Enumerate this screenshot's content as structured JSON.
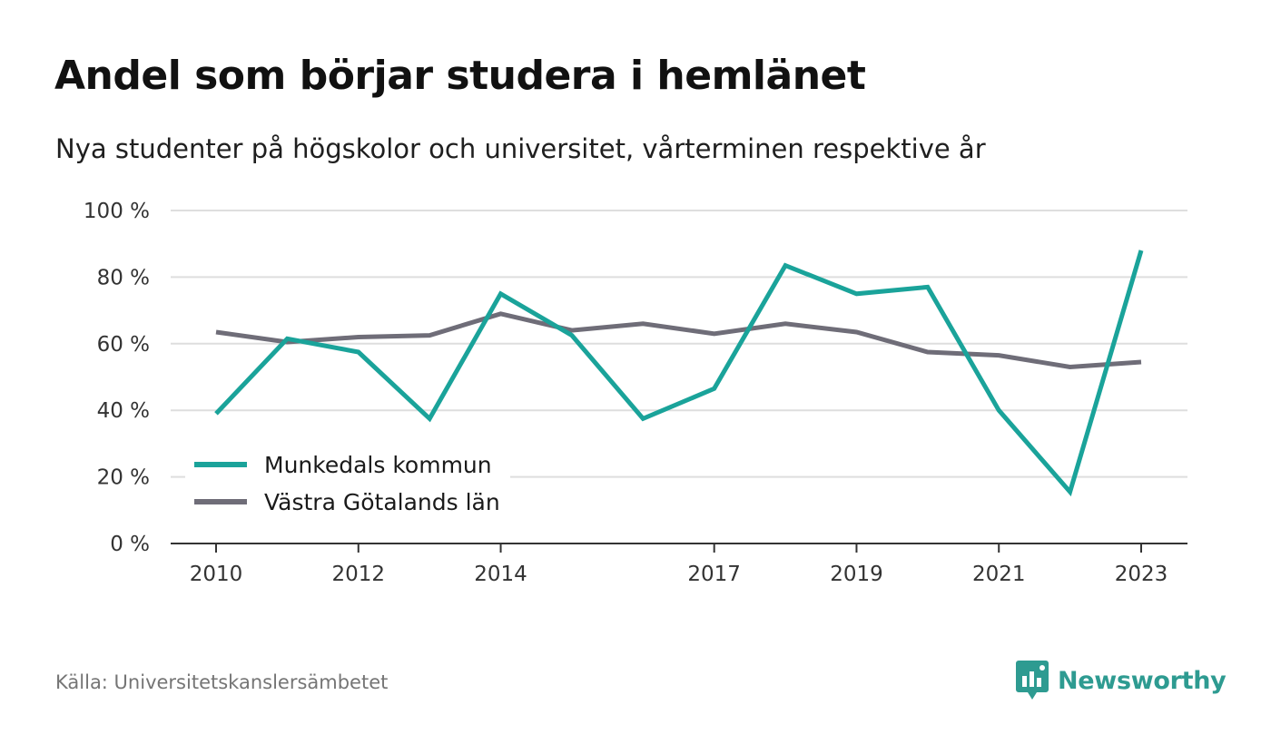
{
  "title": "Andel som börjar studera i hemlänet",
  "subtitle": "Nya studenter på högskolor och universitet, vårterminen respektive år",
  "source": "Källa: Universitetskanslersämbetet",
  "brand": {
    "name": "Newsworthy",
    "icon": "newsworthy-logo-icon",
    "color": "#2e9b91"
  },
  "chart_data": {
    "type": "line",
    "x": [
      2010,
      2011,
      2012,
      2013,
      2014,
      2015,
      2016,
      2017,
      2018,
      2019,
      2020,
      2021,
      2022,
      2023
    ],
    "x_tick_labels": [
      "2010",
      "2012",
      "2014",
      "2017",
      "2019",
      "2021",
      "2023"
    ],
    "x_tick_values": [
      2010,
      2012,
      2014,
      2017,
      2019,
      2021,
      2023
    ],
    "ylim": [
      0,
      100
    ],
    "y_ticks": [
      0,
      20,
      40,
      60,
      80,
      100
    ],
    "y_tick_labels": [
      "0 %",
      "20 %",
      "40 %",
      "60 %",
      "80 %",
      "100 %"
    ],
    "grid": true,
    "legend_position": "bottom-left",
    "series": [
      {
        "name": "Munkedals kommun",
        "color": "#1aa39a",
        "values": [
          39,
          61.5,
          57.5,
          37.5,
          75,
          62.5,
          37.5,
          46.5,
          83.5,
          75,
          77,
          40,
          15.5,
          88
        ]
      },
      {
        "name": "Västra Götalands län",
        "color": "#6f6d78",
        "values": [
          63.5,
          60.5,
          62,
          62.5,
          69,
          64,
          66,
          63,
          66,
          63.5,
          57.5,
          56.5,
          53,
          54.5
        ]
      }
    ]
  }
}
